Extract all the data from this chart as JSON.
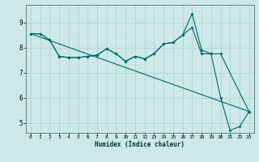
{
  "xlabel": "Humidex (Indice chaleur)",
  "ylabel": "",
  "bg_color": "#cce8e8",
  "line_color": "#006868",
  "grid_color": "#aacfcf",
  "xlim": [
    -0.5,
    23.5
  ],
  "ylim": [
    4.6,
    9.7
  ],
  "xticks": [
    0,
    1,
    2,
    3,
    4,
    5,
    6,
    7,
    8,
    9,
    10,
    11,
    12,
    13,
    14,
    15,
    16,
    17,
    18,
    19,
    20,
    21,
    22,
    23
  ],
  "yticks": [
    5,
    6,
    7,
    8,
    9
  ],
  "line1_x": [
    0,
    1,
    2,
    3,
    4,
    5,
    6,
    7,
    8,
    9,
    10,
    11,
    12,
    13,
    14,
    15,
    16,
    17,
    18,
    19,
    20,
    21,
    22,
    23
  ],
  "line1_y": [
    8.55,
    8.55,
    8.3,
    7.65,
    7.6,
    7.6,
    7.65,
    7.7,
    7.95,
    7.75,
    7.45,
    7.65,
    7.55,
    7.75,
    8.15,
    8.2,
    8.5,
    9.35,
    7.9,
    7.75,
    6.0,
    4.7,
    4.85,
    5.45
  ],
  "line2_x": [
    0,
    1,
    2,
    3,
    4,
    5,
    6,
    7,
    8,
    9,
    10,
    11,
    12,
    13,
    14,
    15,
    16,
    17,
    18,
    19,
    20,
    23
  ],
  "line2_y": [
    8.55,
    8.55,
    8.3,
    7.65,
    7.6,
    7.6,
    7.65,
    7.7,
    7.95,
    7.75,
    7.45,
    7.65,
    7.55,
    7.75,
    8.15,
    8.2,
    8.5,
    8.8,
    7.75,
    7.75,
    7.75,
    5.45
  ],
  "line3_x": [
    0,
    23
  ],
  "line3_y": [
    8.55,
    5.45
  ],
  "figsize": [
    3.2,
    2.0
  ],
  "dpi": 100
}
